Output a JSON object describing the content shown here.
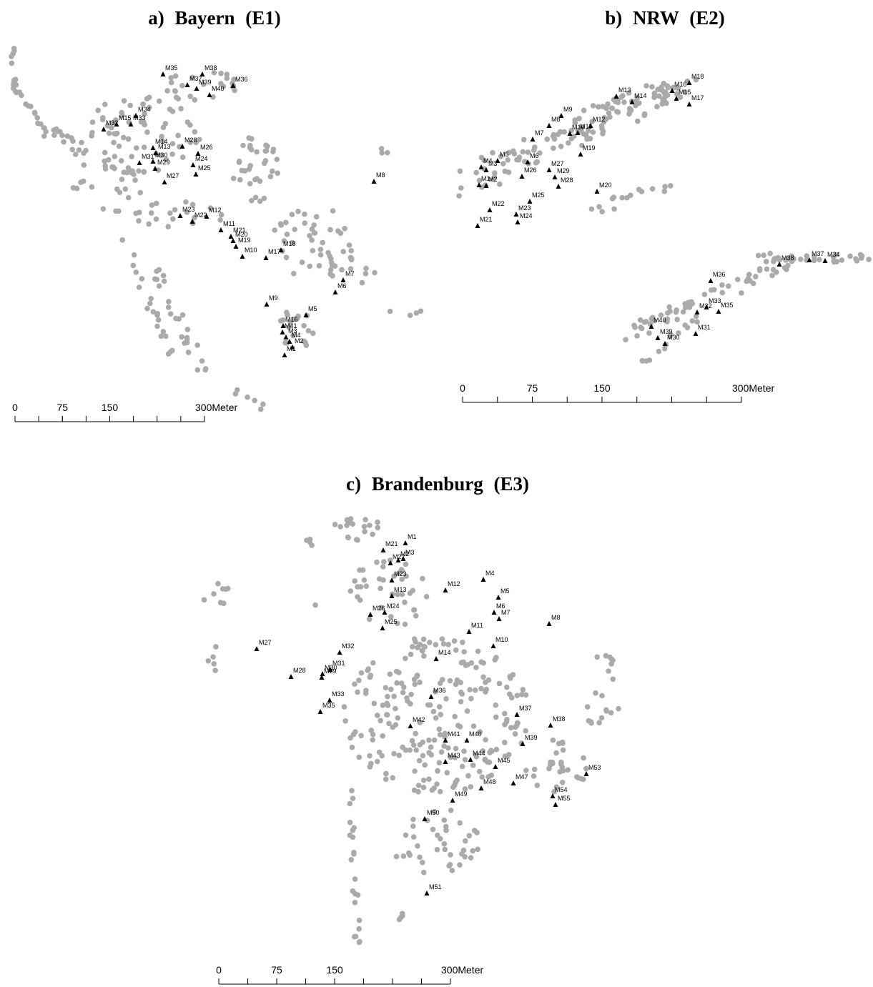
{
  "panels": [
    {
      "title": "a) Bayern (E1)",
      "markers": [
        "M35",
        "M38",
        "M37",
        "M39",
        "M36",
        "M40",
        "M34",
        "M33",
        "M15",
        "M32",
        "M14",
        "M13",
        "M28",
        "M26",
        "M31",
        "M30",
        "M29",
        "M24",
        "M25",
        "M27",
        "M23",
        "M12",
        "M22",
        "M11",
        "M21",
        "M20",
        "M19",
        "M10",
        "M17",
        "M18",
        "M7",
        "M6",
        "M8",
        "M9",
        "M5",
        "M16",
        "M41",
        "M3",
        "M4",
        "M1",
        "M2"
      ],
      "scale": {
        "ticks": [
          0,
          75,
          150,
          {
            "value": 300,
            "label": "300Meter"
          }
        ]
      }
    },
    {
      "title": "b) NRW (E2)",
      "markers": [
        "M18",
        "M16",
        "M15",
        "M17",
        "M13",
        "M14",
        "M9",
        "M8",
        "M12",
        "M10",
        "M11",
        "M7",
        "M19",
        "M4",
        "M5",
        "M6",
        "M3",
        "M26",
        "M27",
        "M29",
        "M28",
        "M1",
        "M2",
        "M20",
        "M25",
        "M22",
        "M23",
        "M24",
        "M21",
        "M38",
        "M37",
        "M34",
        "M36",
        "M33",
        "M35",
        "M32",
        "M31",
        "M40",
        "M39",
        "M30"
      ],
      "scale": {
        "ticks": [
          0,
          75,
          150,
          {
            "value": 300,
            "label": "300Meter"
          }
        ]
      }
    },
    {
      "title": "c) Brandenburg (E3)",
      "markers": [
        "M1",
        "M21",
        "M2",
        "M3",
        "M22",
        "M23",
        "M4",
        "M12",
        "M13",
        "M5",
        "M24",
        "M26",
        "M6",
        "M7",
        "M8",
        "M25",
        "M11",
        "M10",
        "M27",
        "M32",
        "M14",
        "M28",
        "M31",
        "M30",
        "M29",
        "M33",
        "M35",
        "M36",
        "M37",
        "M38",
        "M42",
        "M41",
        "M40",
        "M39",
        "M43",
        "M44",
        "M45",
        "M53",
        "M47",
        "M48",
        "M54",
        "M55",
        "M49",
        "M50",
        "M51"
      ],
      "scale": {
        "ticks": [
          0,
          75,
          150,
          {
            "value": 300,
            "label": "300Meter"
          }
        ]
      }
    }
  ]
}
